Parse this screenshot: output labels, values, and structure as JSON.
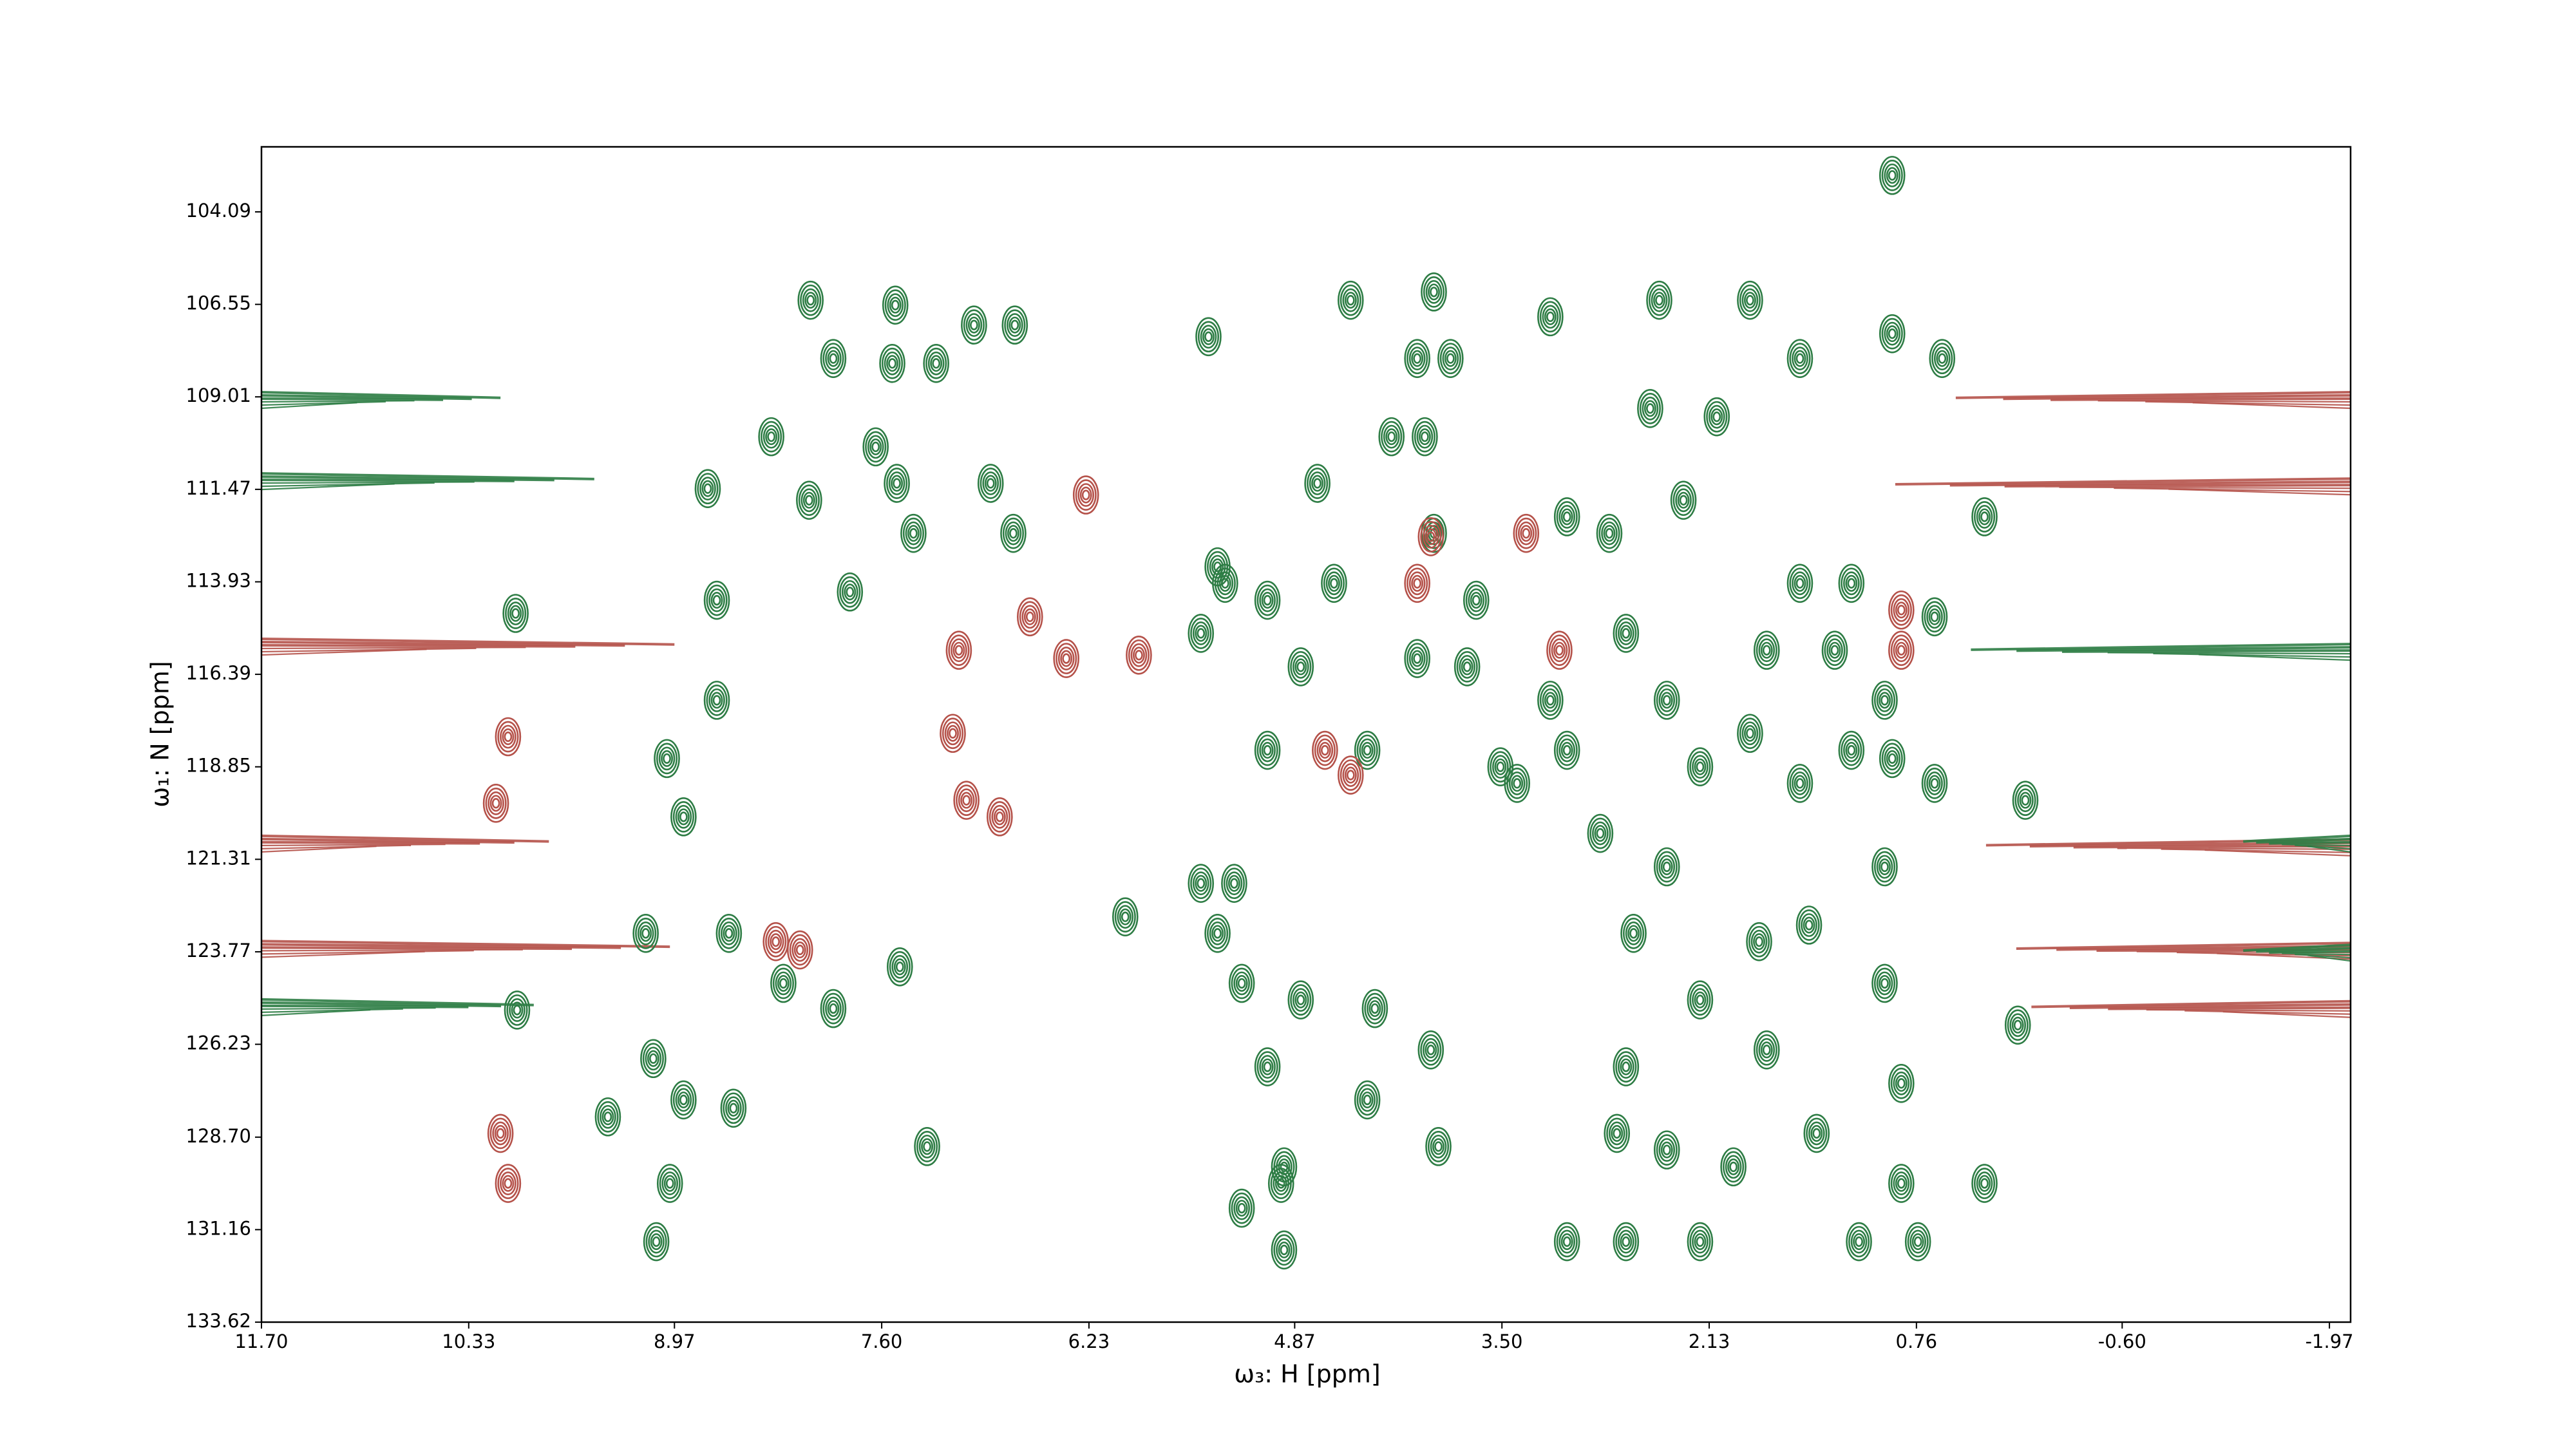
{
  "chart_data": {
    "type": "contour",
    "x_label": "ω₃: H [ppm]",
    "y_label": "ω₁: N [ppm]",
    "xlim": [
      11.7,
      -2.11
    ],
    "ylim": [
      133.62,
      102.36
    ],
    "xticks": [
      {
        "value": 11.7,
        "label": "11.70"
      },
      10.33,
      8.97,
      {
        "value": 7.6,
        "label": "7.60"
      },
      6.23,
      4.87,
      {
        "value": 3.5,
        "label": "3.50"
      },
      2.13,
      0.76,
      {
        "value": -0.6,
        "label": "-0.60"
      },
      -1.97
    ],
    "yticks": [
      104.09,
      106.55,
      109.01,
      111.47,
      113.93,
      116.39,
      118.85,
      121.31,
      123.77,
      126.23,
      {
        "value": 128.7,
        "label": "128.70"
      },
      131.16,
      133.62
    ],
    "series": [
      {
        "color": "#2e7d45",
        "x": [
          8.07,
          7.51,
          6.72,
          6.99,
          8.33,
          7.64,
          7.92,
          7.53,
          7.24,
          8.75,
          8.08,
          7.5,
          6.88,
          6.73,
          7.39,
          8.69,
          7.81,
          10.02,
          9.02,
          8.69,
          9.16,
          8.91,
          8.61,
          10.01,
          9.41,
          9.11,
          8.91,
          8.58,
          7.92,
          7.3,
          9.09,
          9.0,
          8.25,
          7.48,
          5.44,
          4.5,
          4.06,
          3.84,
          3.95,
          4.72,
          4.23,
          4.01,
          5.33,
          5.05,
          4.61,
          4.06,
          4.83,
          4.39,
          5.05,
          5.27,
          5.38,
          5.22,
          4.83,
          5.05,
          4.94,
          4.39,
          3.97,
          3.92,
          5.22,
          4.96,
          4.94,
          4.34,
          3.4,
          3.18,
          2.68,
          2.41,
          2.85,
          3.07,
          2.19,
          1.86,
          1.53,
          1.19,
          0.92,
          0.97,
          0.64,
          2.41,
          2.63,
          2.19,
          1.75,
          0.97,
          0.86,
          1.42,
          2.74,
          1.97,
          0.86,
          0.31,
          3.18,
          2.46,
          1.86,
          0.92,
          0.92,
          1.53,
          0.59,
          0.31,
          0.64,
          0.04,
          0.09,
          1.8,
          1.47,
          2.52,
          2.3,
          2.08,
          2.79,
          3.07,
          5.99,
          3.07,
          2.68,
          2.19,
          1.14,
          0.75,
          2.68,
          2.41,
          5.38,
          5.49,
          5.49,
          0.97,
          1.53,
          1.19,
          3.95,
          3.67,
          3.73,
          3.51,
          1.75,
          1.3
        ],
        "y": [
          106.44,
          106.57,
          107.1,
          107.1,
          110.07,
          110.34,
          107.99,
          108.12,
          108.12,
          111.45,
          111.76,
          111.31,
          111.31,
          112.64,
          112.64,
          114.42,
          114.2,
          114.77,
          118.63,
          117.08,
          123.28,
          120.18,
          123.28,
          125.32,
          128.16,
          126.61,
          127.71,
          127.93,
          125.28,
          128.95,
          131.48,
          129.93,
          124.61,
          124.17,
          107.41,
          106.44,
          107.99,
          107.99,
          106.22,
          111.31,
          110.07,
          110.07,
          113.97,
          114.42,
          113.97,
          115.97,
          116.19,
          118.41,
          118.41,
          121.95,
          123.28,
          124.61,
          125.05,
          126.83,
          129.49,
          127.71,
          126.38,
          128.95,
          130.59,
          129.93,
          131.7,
          125.28,
          119.29,
          117.08,
          115.3,
          117.08,
          120.62,
          118.41,
          118.85,
          117.96,
          119.29,
          118.41,
          118.63,
          121.51,
          119.29,
          121.51,
          123.28,
          125.05,
          126.38,
          124.61,
          127.27,
          128.6,
          128.6,
          129.49,
          129.93,
          129.93,
          106.88,
          106.44,
          106.44,
          103.12,
          107.33,
          107.99,
          107.99,
          112.2,
          114.86,
          119.74,
          125.72,
          123.5,
          123.06,
          109.32,
          111.76,
          109.54,
          112.64,
          112.2,
          122.84,
          131.48,
          131.48,
          131.48,
          131.48,
          131.48,
          126.83,
          129.04,
          113.53,
          115.3,
          121.95,
          117.08,
          113.97,
          113.97,
          112.64,
          114.42,
          116.19,
          118.85,
          115.75,
          115.75
        ]
      },
      {
        "color": "#b5524a",
        "x": [
          10.07,
          10.15,
          6.25,
          5.9,
          6.38,
          6.62,
          7.09,
          8.14,
          8.3,
          4.5,
          4.67,
          3.34,
          0.86,
          0.86,
          3.12,
          10.12,
          10.07,
          3.97,
          4.06,
          7.04,
          6.82,
          7.13
        ],
        "y": [
          118.05,
          119.82,
          111.62,
          115.88,
          115.97,
          114.86,
          115.75,
          123.72,
          123.5,
          119.07,
          118.41,
          112.64,
          114.68,
          115.75,
          115.75,
          128.6,
          129.93,
          112.73,
          113.97,
          119.74,
          120.18,
          117.96
        ]
      }
    ],
    "ridges": [
      {
        "color": "#2e7d45",
        "y": 109.1,
        "x": [
          11.7,
          10.12
        ]
      },
      {
        "color": "#2e7d45",
        "y": 111.26,
        "x": [
          11.7,
          9.5
        ]
      },
      {
        "color": "#b5524a",
        "y": 115.66,
        "x": [
          11.7,
          8.97
        ]
      },
      {
        "color": "#b5524a",
        "y": 120.9,
        "x": [
          11.7,
          9.8
        ]
      },
      {
        "color": "#b5524a",
        "y": 123.7,
        "x": [
          11.7,
          9.0
        ]
      },
      {
        "color": "#2e7d45",
        "y": 125.25,
        "x": [
          11.7,
          9.9
        ]
      },
      {
        "color": "#b5524a",
        "y": 109.1,
        "x": [
          -2.11,
          0.5
        ]
      },
      {
        "color": "#b5524a",
        "y": 111.4,
        "x": [
          -2.11,
          0.9
        ]
      },
      {
        "color": "#2e7d45",
        "y": 115.8,
        "x": [
          -2.11,
          0.4
        ]
      },
      {
        "color": "#b5524a",
        "y": 121.0,
        "x": [
          -2.11,
          0.3
        ]
      },
      {
        "color": "#b5524a",
        "y": 123.75,
        "x": [
          -2.11,
          0.1
        ]
      },
      {
        "color": "#b5524a",
        "y": 125.3,
        "x": [
          -2.11,
          0.0
        ]
      },
      {
        "color": "#2e7d45",
        "y": 120.9,
        "x": [
          -2.11,
          -1.4
        ]
      },
      {
        "color": "#2e7d45",
        "y": 123.8,
        "x": [
          -2.11,
          -1.4
        ]
      }
    ]
  }
}
